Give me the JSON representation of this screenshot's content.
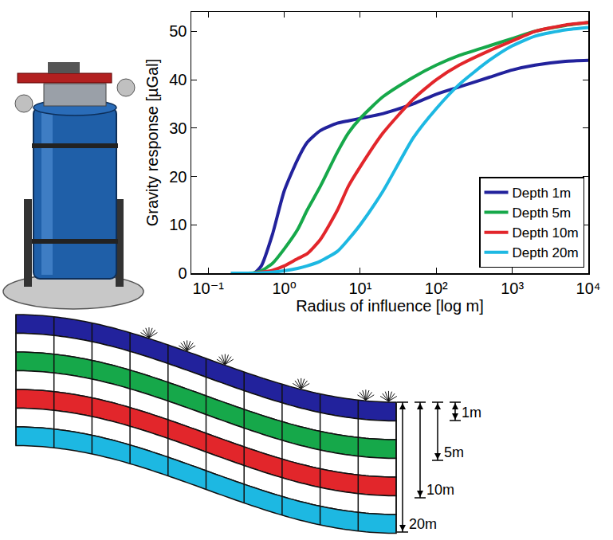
{
  "chart_data": {
    "type": "line",
    "x_label": "Radius of influence [log m]",
    "y_label": "Gravity response [µGal]",
    "log": "x",
    "grid": false,
    "legend": "bottom right",
    "x": [
      0.2,
      0.3,
      0.4,
      0.5,
      0.7,
      1,
      1.5,
      2,
      3,
      5,
      7,
      10,
      20,
      50,
      100,
      200,
      500,
      1000,
      2000,
      5000,
      10000
    ],
    "series": [
      {
        "name": "Depth 1m",
        "color": "#22229c",
        "values": [
          0,
          0,
          0,
          1.5,
          8,
          17,
          23.5,
          27,
          29.5,
          31,
          31.5,
          32,
          33,
          35,
          37,
          38.5,
          40.5,
          42,
          43,
          43.8,
          44
        ]
      },
      {
        "name": "Depth 5m",
        "color": "#16a84a",
        "values": [
          0,
          0,
          0.1,
          0.5,
          2,
          5,
          9,
          13,
          18,
          25,
          29,
          32,
          36.5,
          40.5,
          43,
          45,
          47,
          48.5,
          50,
          51.2,
          51.8
        ]
      },
      {
        "name": "Depth 10m",
        "color": "#e2262b",
        "values": [
          0,
          0,
          0,
          0.2,
          0.6,
          1.5,
          3,
          4,
          7,
          13,
          18,
          22,
          29,
          36,
          40,
          43,
          46,
          48,
          50,
          51.3,
          51.8
        ]
      },
      {
        "name": "Depth 20m",
        "color": "#1db8e2",
        "values": [
          0,
          0,
          0,
          0.1,
          0.2,
          0.5,
          1,
          1.5,
          2.5,
          4.5,
          7,
          10,
          17,
          28,
          34,
          39,
          44,
          47,
          49,
          50.3,
          50.8
        ]
      }
    ],
    "xlim": [
      0.06,
      10000
    ],
    "xticks": [
      {
        "value": 0.1,
        "label": "10⁻¹"
      },
      {
        "value": 1,
        "label": "10⁰"
      },
      {
        "value": 10,
        "label": "10¹"
      },
      {
        "value": 100,
        "label": "10²"
      },
      {
        "value": 1000,
        "label": "10³"
      },
      {
        "value": 10000,
        "label": "10⁴"
      }
    ],
    "ylim": [
      0,
      54
    ],
    "yticks": [
      0,
      10,
      20,
      30,
      40,
      50
    ]
  },
  "diagram": {
    "depth_labels": [
      "1m",
      "5m",
      "10m",
      "20m"
    ]
  }
}
